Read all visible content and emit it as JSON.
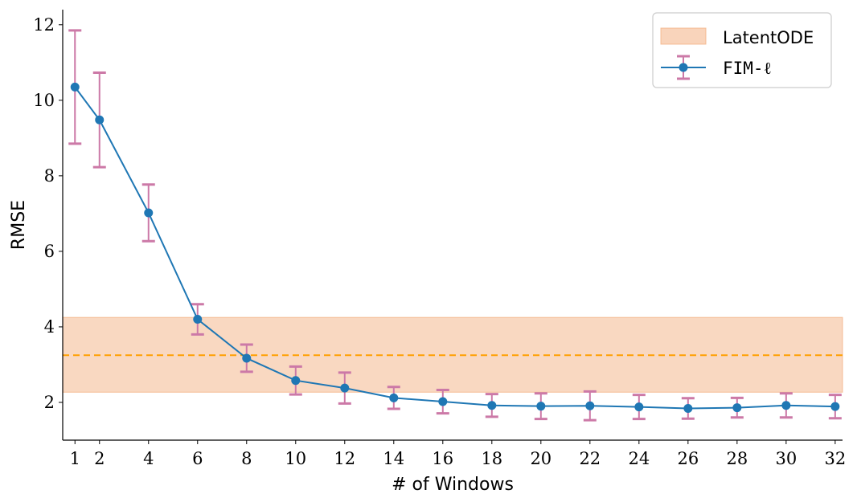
{
  "chart_data": {
    "type": "line",
    "xlabel": "# of Windows",
    "ylabel": "RMSE",
    "xlim": [
      0.5,
      32.3
    ],
    "ylim": [
      1.0,
      12.4
    ],
    "x_ticks": [
      1,
      2,
      4,
      6,
      8,
      10,
      12,
      14,
      16,
      18,
      20,
      22,
      24,
      26,
      28,
      30,
      32
    ],
    "y_ticks": [
      2,
      4,
      6,
      8,
      10,
      12
    ],
    "grid": false,
    "legend_position": "top-right",
    "series": [
      {
        "name": "FIM-ℓ",
        "color": "#1f77b4",
        "errorbar_color": "#cc79a7",
        "marker": "circle",
        "x": [
          1,
          2,
          4,
          6,
          8,
          10,
          12,
          14,
          16,
          18,
          20,
          22,
          24,
          26,
          28,
          30,
          32
        ],
        "y": [
          10.35,
          9.48,
          7.02,
          4.2,
          3.17,
          2.58,
          2.38,
          2.12,
          2.02,
          1.92,
          1.9,
          1.91,
          1.88,
          1.84,
          1.86,
          1.92,
          1.89
        ],
        "yerr": [
          1.5,
          1.25,
          0.75,
          0.4,
          0.36,
          0.37,
          0.41,
          0.29,
          0.31,
          0.3,
          0.34,
          0.38,
          0.32,
          0.27,
          0.26,
          0.32,
          0.31
        ]
      }
    ],
    "band": {
      "name": "LatentODE",
      "color": "#f4b183",
      "line_color": "#ff9f00",
      "mean": 3.25,
      "low": 2.27,
      "high": 4.25
    }
  },
  "legend": {
    "band_label": "LatentODE",
    "series_label": "FIM-ℓ"
  }
}
